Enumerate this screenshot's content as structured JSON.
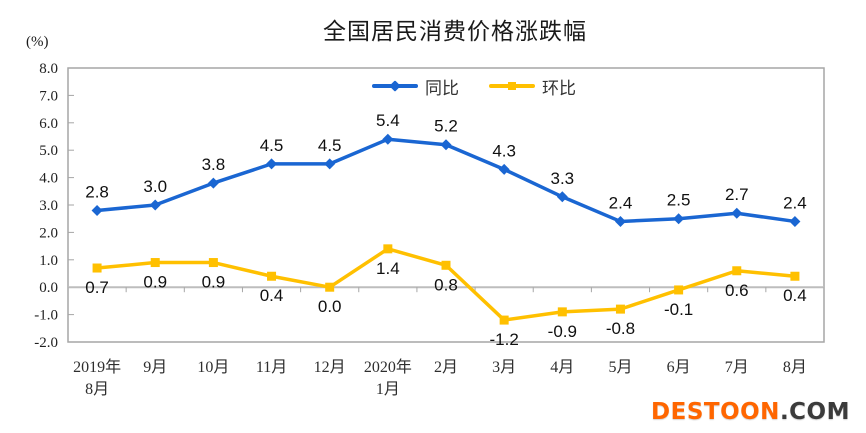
{
  "chart_data": {
    "type": "line",
    "title": "全国居民消费价格涨跌幅",
    "unit_label": "(%)",
    "categories": [
      "2019年\n8月",
      "9月",
      "10月",
      "11月",
      "12月",
      "2020年\n1月",
      "2月",
      "3月",
      "4月",
      "5月",
      "6月",
      "7月",
      "8月"
    ],
    "series": [
      {
        "name": "同比",
        "color": "#1a66d2",
        "marker": "diamond",
        "label_position": "above",
        "values": [
          2.8,
          3.0,
          3.8,
          4.5,
          4.5,
          5.4,
          5.2,
          4.3,
          3.3,
          2.4,
          2.5,
          2.7,
          2.4
        ]
      },
      {
        "name": "环比",
        "color": "#FFC000",
        "marker": "square",
        "label_position": "below",
        "values": [
          0.7,
          0.9,
          0.9,
          0.4,
          0.0,
          1.4,
          0.8,
          -1.2,
          -0.9,
          -0.8,
          -0.1,
          0.6,
          0.4
        ]
      }
    ],
    "ylim": [
      -2.0,
      8.0
    ],
    "ytick_step": 1.0,
    "grid": "zero-line-only",
    "legend_position": "top-center",
    "axis_color": "#a6a6a6",
    "zero_line_color": "#bdbdbd",
    "label_color": "#101010"
  },
  "watermark": {
    "brand": "DESTOON",
    "suffix": ".COM",
    "brand_color": "#FF6600",
    "suffix_color": "#3b3b3b"
  }
}
